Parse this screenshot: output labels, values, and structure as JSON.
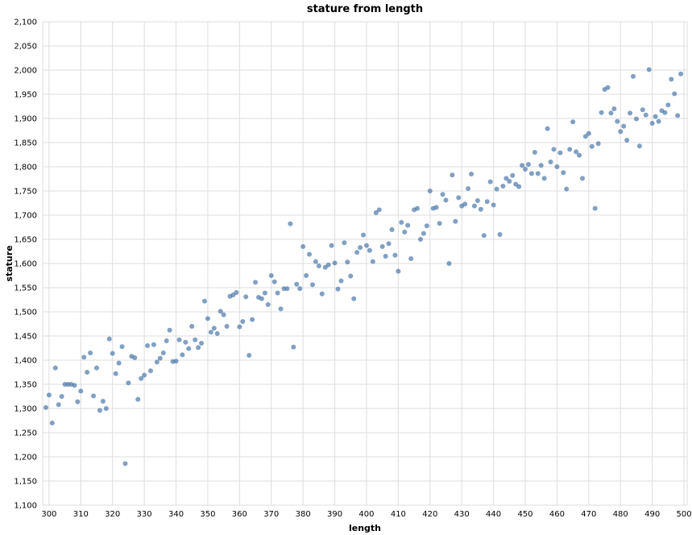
{
  "chart_data": {
    "type": "scatter",
    "title": "stature from length",
    "xlabel": "length",
    "ylabel": "stature",
    "xlim": [
      298,
      501
    ],
    "ylim": [
      1100,
      2100
    ],
    "x_ticks": [
      300,
      310,
      320,
      330,
      340,
      350,
      360,
      370,
      380,
      390,
      400,
      410,
      420,
      430,
      440,
      450,
      460,
      470,
      480,
      490,
      500
    ],
    "y_ticks": [
      1100,
      1150,
      1200,
      1250,
      1300,
      1350,
      1400,
      1450,
      1500,
      1550,
      1600,
      1650,
      1700,
      1750,
      1800,
      1850,
      1900,
      1950,
      2000,
      2050,
      2100
    ],
    "grid": true,
    "color": "#4c78a8",
    "points": [
      [
        299,
        1302
      ],
      [
        300,
        1328
      ],
      [
        301,
        1270
      ],
      [
        302,
        1384
      ],
      [
        303,
        1308
      ],
      [
        304,
        1325
      ],
      [
        305,
        1350
      ],
      [
        306,
        1350
      ],
      [
        307,
        1350
      ],
      [
        308,
        1348
      ],
      [
        309,
        1314
      ],
      [
        310,
        1336
      ],
      [
        311,
        1406
      ],
      [
        312,
        1375
      ],
      [
        313,
        1415
      ],
      [
        314,
        1326
      ],
      [
        315,
        1384
      ],
      [
        316,
        1296
      ],
      [
        317,
        1315
      ],
      [
        318,
        1300
      ],
      [
        319,
        1444
      ],
      [
        320,
        1414
      ],
      [
        321,
        1372
      ],
      [
        322,
        1394
      ],
      [
        323,
        1428
      ],
      [
        324,
        1186
      ],
      [
        325,
        1353
      ],
      [
        326,
        1408
      ],
      [
        327,
        1405
      ],
      [
        328,
        1319
      ],
      [
        329,
        1362
      ],
      [
        330,
        1369
      ],
      [
        331,
        1430
      ],
      [
        332,
        1378
      ],
      [
        333,
        1432
      ],
      [
        334,
        1396
      ],
      [
        335,
        1404
      ],
      [
        336,
        1415
      ],
      [
        337,
        1440
      ],
      [
        338,
        1462
      ],
      [
        339,
        1397
      ],
      [
        340,
        1398
      ],
      [
        341,
        1442
      ],
      [
        342,
        1411
      ],
      [
        343,
        1437
      ],
      [
        344,
        1424
      ],
      [
        345,
        1470
      ],
      [
        346,
        1442
      ],
      [
        347,
        1426
      ],
      [
        348,
        1435
      ],
      [
        349,
        1522
      ],
      [
        350,
        1486
      ],
      [
        351,
        1458
      ],
      [
        352,
        1466
      ],
      [
        353,
        1455
      ],
      [
        354,
        1501
      ],
      [
        355,
        1494
      ],
      [
        356,
        1470
      ],
      [
        357,
        1532
      ],
      [
        358,
        1535
      ],
      [
        359,
        1540
      ],
      [
        360,
        1469
      ],
      [
        361,
        1480
      ],
      [
        362,
        1531
      ],
      [
        363,
        1410
      ],
      [
        364,
        1484
      ],
      [
        365,
        1561
      ],
      [
        366,
        1530
      ],
      [
        367,
        1527
      ],
      [
        368,
        1539
      ],
      [
        369,
        1515
      ],
      [
        370,
        1575
      ],
      [
        371,
        1562
      ],
      [
        372,
        1539
      ],
      [
        373,
        1506
      ],
      [
        374,
        1548
      ],
      [
        375,
        1548
      ],
      [
        376,
        1682
      ],
      [
        377,
        1427
      ],
      [
        378,
        1557
      ],
      [
        379,
        1548
      ],
      [
        380,
        1635
      ],
      [
        381,
        1575
      ],
      [
        382,
        1619
      ],
      [
        383,
        1556
      ],
      [
        384,
        1604
      ],
      [
        385,
        1595
      ],
      [
        386,
        1537
      ],
      [
        387,
        1592
      ],
      [
        388,
        1597
      ],
      [
        389,
        1637
      ],
      [
        390,
        1601
      ],
      [
        391,
        1547
      ],
      [
        392,
        1564
      ],
      [
        393,
        1643
      ],
      [
        394,
        1603
      ],
      [
        395,
        1574
      ],
      [
        396,
        1527
      ],
      [
        397,
        1623
      ],
      [
        398,
        1633
      ],
      [
        399,
        1659
      ],
      [
        400,
        1637
      ],
      [
        401,
        1627
      ],
      [
        402,
        1604
      ],
      [
        403,
        1705
      ],
      [
        404,
        1711
      ],
      [
        405,
        1635
      ],
      [
        406,
        1615
      ],
      [
        407,
        1641
      ],
      [
        408,
        1670
      ],
      [
        409,
        1617
      ],
      [
        410,
        1584
      ],
      [
        411,
        1685
      ],
      [
        412,
        1665
      ],
      [
        413,
        1679
      ],
      [
        414,
        1610
      ],
      [
        415,
        1711
      ],
      [
        416,
        1714
      ],
      [
        417,
        1650
      ],
      [
        418,
        1662
      ],
      [
        419,
        1678
      ],
      [
        420,
        1750
      ],
      [
        421,
        1714
      ],
      [
        422,
        1716
      ],
      [
        423,
        1683
      ],
      [
        424,
        1743
      ],
      [
        425,
        1731
      ],
      [
        426,
        1600
      ],
      [
        427,
        1783
      ],
      [
        428,
        1687
      ],
      [
        429,
        1736
      ],
      [
        430,
        1719
      ],
      [
        431,
        1723
      ],
      [
        432,
        1755
      ],
      [
        433,
        1785
      ],
      [
        434,
        1719
      ],
      [
        435,
        1730
      ],
      [
        436,
        1712
      ],
      [
        437,
        1658
      ],
      [
        438,
        1728
      ],
      [
        439,
        1769
      ],
      [
        440,
        1721
      ],
      [
        441,
        1754
      ],
      [
        442,
        1660
      ],
      [
        443,
        1760
      ],
      [
        444,
        1776
      ],
      [
        445,
        1770
      ],
      [
        446,
        1782
      ],
      [
        447,
        1764
      ],
      [
        448,
        1759
      ],
      [
        449,
        1803
      ],
      [
        450,
        1795
      ],
      [
        451,
        1805
      ],
      [
        452,
        1786
      ],
      [
        453,
        1830
      ],
      [
        454,
        1786
      ],
      [
        455,
        1803
      ],
      [
        456,
        1776
      ],
      [
        457,
        1879
      ],
      [
        458,
        1810
      ],
      [
        459,
        1836
      ],
      [
        460,
        1800
      ],
      [
        461,
        1829
      ],
      [
        462,
        1788
      ],
      [
        463,
        1754
      ],
      [
        464,
        1836
      ],
      [
        465,
        1893
      ],
      [
        466,
        1831
      ],
      [
        467,
        1824
      ],
      [
        468,
        1776
      ],
      [
        469,
        1863
      ],
      [
        470,
        1869
      ],
      [
        471,
        1842
      ],
      [
        472,
        1714
      ],
      [
        473,
        1848
      ],
      [
        474,
        1912
      ],
      [
        475,
        1960
      ],
      [
        476,
        1964
      ],
      [
        477,
        1911
      ],
      [
        478,
        1920
      ],
      [
        479,
        1894
      ],
      [
        480,
        1873
      ],
      [
        481,
        1884
      ],
      [
        482,
        1855
      ],
      [
        483,
        1911
      ],
      [
        484,
        1987
      ],
      [
        485,
        1899
      ],
      [
        486,
        1843
      ],
      [
        487,
        1918
      ],
      [
        488,
        1907
      ],
      [
        489,
        2001
      ],
      [
        490,
        1890
      ],
      [
        491,
        1904
      ],
      [
        492,
        1894
      ],
      [
        493,
        1916
      ],
      [
        494,
        1912
      ],
      [
        495,
        1928
      ],
      [
        496,
        1981
      ],
      [
        497,
        1951
      ],
      [
        498,
        1906
      ],
      [
        499,
        1992
      ]
    ]
  }
}
